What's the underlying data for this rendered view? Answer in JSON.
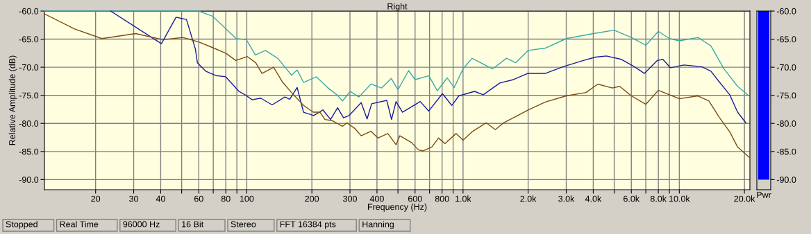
{
  "chart_data": [
    {
      "type": "line",
      "title": "Right",
      "xlabel": "Frequency (Hz)",
      "ylabel": "Relative Amplitude (dB)",
      "log": "x",
      "grid": true,
      "marker": "none",
      "line_style": "solid",
      "xlim": [
        11.6,
        21200
      ],
      "ylim": [
        -91.8,
        -60
      ],
      "xticks": [
        20,
        30,
        40,
        {
          "value": 50,
          "label": null
        },
        60,
        {
          "value": 70,
          "label": null
        },
        80,
        {
          "value": 90,
          "label": null
        },
        100,
        200,
        300,
        400,
        {
          "value": 500,
          "label": null
        },
        600,
        {
          "value": 700,
          "label": null
        },
        800,
        {
          "value": 900,
          "label": null
        },
        {
          "value": 1000,
          "label": "1.0k"
        },
        {
          "value": 2000,
          "label": "2.0k"
        },
        {
          "value": 3000,
          "label": "3.0k"
        },
        {
          "value": 4000,
          "label": "4.0k"
        },
        {
          "value": 5000,
          "label": null
        },
        {
          "value": 6000,
          "label": "6.0k"
        },
        {
          "value": 7000,
          "label": null
        },
        {
          "value": 8000,
          "label": "8.0k"
        },
        {
          "value": 9000,
          "label": null
        },
        {
          "value": 10000,
          "label": "10.0k"
        },
        {
          "value": 20000,
          "label": "20.0k"
        }
      ],
      "yticks": [
        {
          "value": -60,
          "label": "-60.0"
        },
        {
          "value": -65,
          "label": "-65.0"
        },
        {
          "value": -70,
          "label": "-70.0"
        },
        {
          "value": -75,
          "label": "-75.0"
        },
        {
          "value": -80,
          "label": "-80.0"
        },
        {
          "value": -85,
          "label": "-85.0"
        },
        {
          "value": -90,
          "label": "-90.0"
        }
      ],
      "series": [
        {
          "color": "#3aa8a8",
          "x": [
            11.6,
            60,
            69.4,
            78.3,
            89.3,
            99.6,
            109.6,
            122,
            139,
            161,
            171,
            183,
            210,
            236,
            261,
            277,
            301,
            330,
            375,
            420,
            466,
            500,
            560,
            600,
            695,
            760,
            845,
            910,
            1000,
            1100,
            1370,
            1590,
            1750,
            2000,
            2400,
            3000,
            4000,
            5000,
            6000,
            7000,
            8000,
            9000,
            10000,
            12200,
            14000,
            16100,
            18600,
            21000
          ],
          "values": [
            -60,
            -60,
            -60.9,
            -62.8,
            -64.9,
            -65.1,
            -67.8,
            -67.0,
            -68.4,
            -71.4,
            -70.5,
            -72.7,
            -71.7,
            -73.6,
            -74.9,
            -76.0,
            -74.3,
            -75.3,
            -73.0,
            -73.7,
            -72.0,
            -74.0,
            -70.6,
            -72.2,
            -71.5,
            -74.2,
            -71.9,
            -73.6,
            -70.3,
            -68.4,
            -70.3,
            -68.4,
            -69.2,
            -67.0,
            -66.6,
            -64.9,
            -64.0,
            -63.4,
            -64.7,
            -66.1,
            -63.6,
            -64.9,
            -65.3,
            -64.7,
            -66.2,
            -70.3,
            -73.4,
            -75.1
          ]
        },
        {
          "color": "#1a1aa0",
          "x": [
            23.5,
            40.3,
            47.1,
            52.6,
            57.9,
            59.1,
            64.6,
            72.3,
            80,
            92,
            99,
            106,
            116,
            131,
            150,
            158,
            171,
            183,
            204,
            225,
            244,
            263,
            280,
            297,
            338,
            360,
            378,
            444,
            467,
            490,
            525,
            634,
            694,
            803,
            887,
            956,
            1130,
            1240,
            1480,
            1710,
            1990,
            2400,
            2900,
            3600,
            4100,
            4600,
            5400,
            6200,
            6900,
            7900,
            8400,
            9100,
            10500,
            12700,
            14000,
            15300,
            17100,
            18600,
            20300
          ],
          "values": [
            -60,
            -65.8,
            -61.1,
            -61.5,
            -66.8,
            -69.2,
            -70.7,
            -71.5,
            -71.7,
            -74.3,
            -75.0,
            -75.8,
            -75.5,
            -76.7,
            -75.3,
            -75.7,
            -73.6,
            -78.0,
            -78.6,
            -77.6,
            -79.3,
            -77.2,
            -79.0,
            -78.6,
            -76.3,
            -79.2,
            -76.5,
            -75.9,
            -79.3,
            -76.1,
            -78.0,
            -76.1,
            -77.8,
            -74.7,
            -76.8,
            -75.1,
            -74.3,
            -74.9,
            -72.8,
            -72.2,
            -71.1,
            -71.1,
            -69.9,
            -68.8,
            -68.2,
            -68.0,
            -68.6,
            -69.9,
            -71.1,
            -68.8,
            -68.6,
            -70.1,
            -69.6,
            -69.9,
            -70.7,
            -72.6,
            -74.9,
            -78.0,
            -79.9
          ]
        },
        {
          "color": "#7a4a10",
          "x": [
            11.6,
            16,
            21.4,
            30.6,
            41.1,
            50.6,
            60,
            69.5,
            80,
            89,
            100.6,
            110,
            117.6,
            133,
            146,
            161,
            183,
            203,
            218,
            230,
            248,
            277,
            291,
            316,
            338,
            375,
            404,
            449,
            490,
            510,
            578,
            621,
            652,
            717,
            770,
            825,
            928,
            1000,
            1100,
            1280,
            1410,
            1540,
            1790,
            2000,
            2400,
            3000,
            3700,
            4200,
            4900,
            5300,
            6000,
            7000,
            8000,
            9000,
            10000,
            12200,
            13700,
            15300,
            17100,
            18600,
            21000
          ],
          "values": [
            -60.5,
            -63.2,
            -64.9,
            -64.0,
            -65.1,
            -64.7,
            -65.5,
            -66.5,
            -67.5,
            -68.8,
            -68.1,
            -69.2,
            -71.1,
            -70.0,
            -72.6,
            -74.5,
            -76.8,
            -78.0,
            -78.0,
            -79.3,
            -79.5,
            -80.5,
            -79.9,
            -80.9,
            -82.2,
            -81.4,
            -82.6,
            -81.8,
            -83.8,
            -82.2,
            -83.4,
            -84.7,
            -84.9,
            -84.2,
            -82.6,
            -83.6,
            -81.8,
            -83.0,
            -81.5,
            -79.9,
            -81.1,
            -79.9,
            -78.6,
            -77.6,
            -76.2,
            -75.1,
            -74.5,
            -73.0,
            -73.7,
            -73.4,
            -75.1,
            -76.6,
            -74.1,
            -74.9,
            -75.6,
            -75.1,
            -76.0,
            -78.9,
            -81.5,
            -84.2,
            -86.0
          ]
        }
      ],
      "annotations": [
        "Stopped",
        "Real Time",
        "96000 Hz",
        "16 Bit",
        "Stereo",
        "FFT 16384 pts",
        "Hanning"
      ]
    },
    {
      "type": "bar",
      "xlabel": "Pwr",
      "categories": [
        null
      ],
      "base": [
        -90
      ],
      "values": [
        30
      ],
      "color": "#0000ff",
      "tick_labels": "y",
      "ylim": [
        -91.8,
        -60
      ],
      "yticks": [
        {
          "value": -60,
          "label": "-60.0"
        },
        {
          "value": -65,
          "label": "-65.0"
        },
        {
          "value": -70,
          "label": "-70.0"
        },
        {
          "value": -75,
          "label": "-75.0"
        },
        {
          "value": -80,
          "label": "-80.0"
        },
        {
          "value": -85,
          "label": "-85.0"
        },
        {
          "value": -90,
          "label": "-90.0"
        }
      ]
    }
  ]
}
